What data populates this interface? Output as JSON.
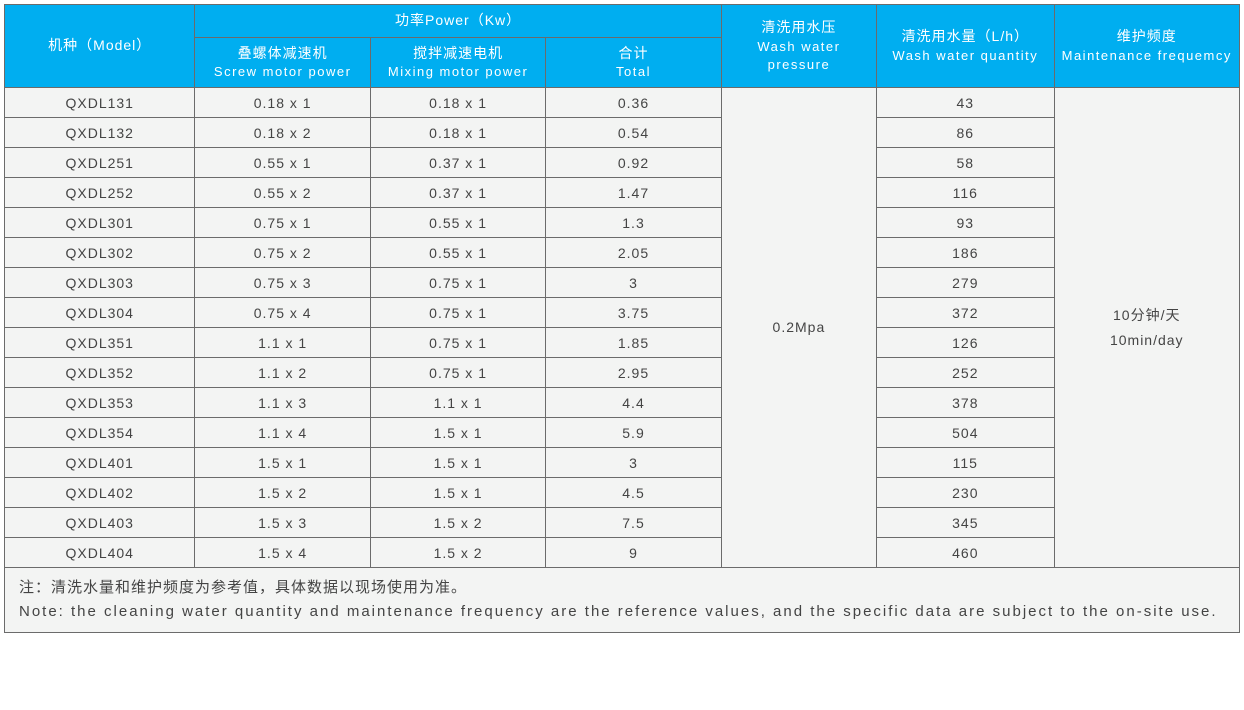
{
  "colors": {
    "header_bg": "#00aef0",
    "header_text": "#ffffff",
    "cell_bg": "#f3f4f3",
    "cell_text": "#444444",
    "border": "#6b6b6b"
  },
  "headers": {
    "model": {
      "cn": "机种（Model）",
      "en": ""
    },
    "power": {
      "cn": "功率Power（Kw）",
      "en": ""
    },
    "screw": {
      "cn": "叠螺体减速机",
      "en": "Screw motor power"
    },
    "mix": {
      "cn": "搅拌减速电机",
      "en": "Mixing motor power"
    },
    "total": {
      "cn": "合计",
      "en": "Total"
    },
    "press": {
      "cn": "清洗用水压",
      "en": "Wash water pressure"
    },
    "qty": {
      "cn": "清洗用水量（L/h）",
      "en": "Wash water quantity"
    },
    "maint": {
      "cn": "维护频度",
      "en": "Maintenance frequemcy"
    }
  },
  "rows": [
    {
      "model": "QXDL131",
      "screw": "0.18 x 1",
      "mix": "0.18 x 1",
      "total": "0.36",
      "qty": "43"
    },
    {
      "model": "QXDL132",
      "screw": "0.18 x 2",
      "mix": "0.18 x 1",
      "total": "0.54",
      "qty": "86"
    },
    {
      "model": "QXDL251",
      "screw": "0.55 x 1",
      "mix": "0.37 x 1",
      "total": "0.92",
      "qty": "58"
    },
    {
      "model": "QXDL252",
      "screw": "0.55 x 2",
      "mix": "0.37 x 1",
      "total": "1.47",
      "qty": "116"
    },
    {
      "model": "QXDL301",
      "screw": "0.75 x 1",
      "mix": "0.55 x 1",
      "total": "1.3",
      "qty": "93"
    },
    {
      "model": "QXDL302",
      "screw": "0.75 x 2",
      "mix": "0.55 x 1",
      "total": "2.05",
      "qty": "186"
    },
    {
      "model": "QXDL303",
      "screw": "0.75 x 3",
      "mix": "0.75 x 1",
      "total": "3",
      "qty": "279"
    },
    {
      "model": "QXDL304",
      "screw": "0.75 x 4",
      "mix": "0.75 x 1",
      "total": "3.75",
      "qty": "372"
    },
    {
      "model": "QXDL351",
      "screw": "1.1 x 1",
      "mix": "0.75 x 1",
      "total": "1.85",
      "qty": "126"
    },
    {
      "model": "QXDL352",
      "screw": "1.1 x 2",
      "mix": "0.75 x 1",
      "total": "2.95",
      "qty": "252"
    },
    {
      "model": "QXDL353",
      "screw": "1.1 x 3",
      "mix": "1.1 x 1",
      "total": "4.4",
      "qty": "378"
    },
    {
      "model": "QXDL354",
      "screw": "1.1 x 4",
      "mix": "1.5 x 1",
      "total": "5.9",
      "qty": "504"
    },
    {
      "model": "QXDL401",
      "screw": "1.5 x 1",
      "mix": "1.5 x 1",
      "total": "3",
      "qty": "115"
    },
    {
      "model": "QXDL402",
      "screw": "1.5 x 2",
      "mix": "1.5 x 1",
      "total": "4.5",
      "qty": "230"
    },
    {
      "model": "QXDL403",
      "screw": "1.5 x 3",
      "mix": "1.5 x 2",
      "total": "7.5",
      "qty": "345"
    },
    {
      "model": "QXDL404",
      "screw": "1.5 x 4",
      "mix": "1.5 x 2",
      "total": "9",
      "qty": "460"
    }
  ],
  "merged": {
    "pressure": "0.2Mpa",
    "maint_cn": "10分钟/天",
    "maint_en": "10min/day"
  },
  "note": {
    "cn": "注：清洗水量和维护频度为参考值，具体数据以现场使用为准。",
    "en": "Note: the cleaning water quantity and maintenance frequency are the reference values, and the specific data are subject to the on-site use."
  },
  "layout": {
    "row_count": 16,
    "font_size_cell": 14,
    "font_size_header": 14
  }
}
